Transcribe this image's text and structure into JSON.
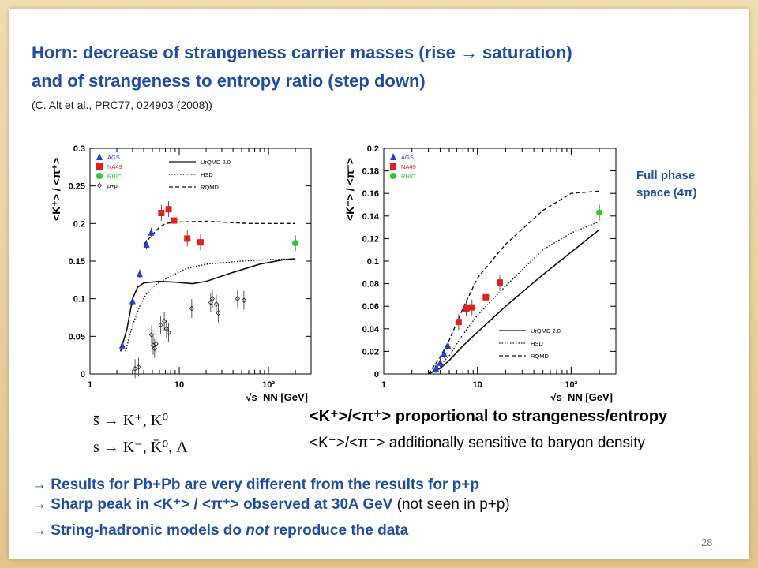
{
  "slide": {
    "title_line1": "Horn: decrease of strangeness carrier masses (rise → saturation)",
    "title_line2": "and of strangeness to entropy ratio (step down)",
    "citation": "(C. Alt et al., PRC77, 024903 (2008))",
    "full_phase_line1": "Full phase",
    "full_phase_line2": "space (4π)",
    "eq1": "s̄ → K⁺, K⁰",
    "eq2": "s → K⁻, K̄⁰, Λ",
    "claim1": "<K⁺>/<π⁺> proportional to strangeness/entropy",
    "claim2": "<K⁻>/<π⁻> additionally sensitive to baryon density",
    "bullet1": "→ Results for Pb+Pb are very different from the results for p+p",
    "bullet2_bold": "→ Sharp peak in <K⁺> / <π⁺> observed at 30A GeV",
    "bullet2_plain": " (not seen in p+p)",
    "bullet3_a": "→ String-hadronic models do ",
    "bullet3_em": "not",
    "bullet3_b": " reproduce the data",
    "page_number": "28"
  },
  "colors": {
    "title_blue": "#1f4ea0",
    "ags": "#1f3fd0",
    "na49": "#e02020",
    "rhic": "#2ec72e"
  },
  "chart_data": [
    {
      "type": "scatter",
      "ylabel": "<K⁺> / <π⁺>",
      "xlabel": "√s_NN [GeV]",
      "x_scale": "log",
      "xlim": [
        1,
        300
      ],
      "ylim": [
        0,
        0.3
      ],
      "y_ticks": [
        "0",
        "0.05",
        "0.1",
        "0.15",
        "0.2",
        "0.25",
        "0.3"
      ],
      "x_tick_labels": [
        "1",
        "10",
        "10²"
      ],
      "legend_markers": [
        {
          "label": "AGS",
          "key": "ags"
        },
        {
          "label": "NA49",
          "key": "na49"
        },
        {
          "label": "RHIC",
          "key": "rhic"
        },
        {
          "label": "p+p",
          "key": "pp"
        }
      ],
      "legend_lines": [
        {
          "label": "UrQMD 2.0",
          "style": "solid"
        },
        {
          "label": "HSD",
          "style": "dotted"
        },
        {
          "label": "RQMD",
          "style": "dashed"
        }
      ],
      "series": [
        {
          "name": "AGS",
          "key": "ags",
          "points": [
            [
              2.3,
              0.038
            ],
            [
              3.0,
              0.097
            ],
            [
              3.6,
              0.133
            ],
            [
              4.3,
              0.172
            ],
            [
              4.85,
              0.188
            ]
          ]
        },
        {
          "name": "NA49",
          "key": "na49",
          "points": [
            [
              6.3,
              0.214
            ],
            [
              7.6,
              0.219
            ],
            [
              8.75,
              0.204
            ],
            [
              12.3,
              0.18
            ],
            [
              17.3,
              0.175
            ]
          ]
        },
        {
          "name": "RHIC",
          "key": "rhic",
          "points": [
            [
              200,
              0.174
            ]
          ]
        },
        {
          "name": "p+p",
          "key": "pp",
          "points": [
            [
              3.2,
              0.007
            ],
            [
              3.5,
              0.009
            ],
            [
              4.9,
              0.052
            ],
            [
              5.1,
              0.038
            ],
            [
              5.3,
              0.034
            ],
            [
              5.5,
              0.04
            ],
            [
              6.2,
              0.065
            ],
            [
              6.8,
              0.07
            ],
            [
              7.2,
              0.06
            ],
            [
              7.6,
              0.055
            ],
            [
              13.8,
              0.087
            ],
            [
              22.5,
              0.095
            ],
            [
              23.5,
              0.1
            ],
            [
              26,
              0.093
            ],
            [
              27.4,
              0.081
            ],
            [
              45,
              0.1
            ],
            [
              53,
              0.098
            ]
          ]
        }
      ],
      "curves": [
        {
          "name": "UrQMD 2.0",
          "style": "solid",
          "points": [
            [
              2.2,
              0.03
            ],
            [
              2.6,
              0.06
            ],
            [
              3.0,
              0.1
            ],
            [
              3.4,
              0.115
            ],
            [
              4.0,
              0.121
            ],
            [
              6.0,
              0.123
            ],
            [
              9,
              0.122
            ],
            [
              14,
              0.12
            ],
            [
              20,
              0.123
            ],
            [
              40,
              0.135
            ],
            [
              80,
              0.146
            ],
            [
              150,
              0.152
            ],
            [
              200,
              0.153
            ]
          ]
        },
        {
          "name": "HSD",
          "style": "dotted",
          "points": [
            [
              2.5,
              0.03
            ],
            [
              3.0,
              0.065
            ],
            [
              3.6,
              0.09
            ],
            [
              4.2,
              0.105
            ],
            [
              5,
              0.115
            ],
            [
              6,
              0.122
            ],
            [
              8,
              0.13
            ],
            [
              12,
              0.14
            ],
            [
              20,
              0.146
            ],
            [
              50,
              0.15
            ],
            [
              100,
              0.152
            ],
            [
              200,
              0.153
            ]
          ]
        },
        {
          "name": "RQMD",
          "style": "dashed",
          "points": [
            [
              4.0,
              0.172
            ],
            [
              5,
              0.185
            ],
            [
              6,
              0.195
            ],
            [
              7,
              0.2
            ],
            [
              10,
              0.202
            ],
            [
              20,
              0.203
            ],
            [
              60,
              0.2
            ],
            [
              200,
              0.2
            ]
          ]
        }
      ]
    },
    {
      "type": "scatter",
      "ylabel": "<K⁻> / <π⁻>",
      "xlabel": "√s_NN [GeV]",
      "x_scale": "log",
      "xlim": [
        1,
        300
      ],
      "ylim": [
        0,
        0.2
      ],
      "y_ticks": [
        "0",
        "0.02",
        "0.04",
        "0.06",
        "0.08",
        "0.1",
        "0.12",
        "0.14",
        "0.16",
        "0.18",
        "0.2"
      ],
      "x_tick_labels": [
        "1",
        "10",
        "10²"
      ],
      "legend_markers": [
        {
          "label": "AGS",
          "key": "ags"
        },
        {
          "label": "NA49",
          "key": "na49"
        },
        {
          "label": "RHIC",
          "key": "rhic"
        }
      ],
      "legend_lines": [
        {
          "label": "UrQMD 2.0",
          "style": "solid"
        },
        {
          "label": "HSD",
          "style": "dotted"
        },
        {
          "label": "RQMD",
          "style": "dashed"
        }
      ],
      "series": [
        {
          "name": "AGS",
          "key": "ags",
          "points": [
            [
              3.6,
              0.005
            ],
            [
              4.0,
              0.01
            ],
            [
              4.4,
              0.018
            ],
            [
              4.85,
              0.025
            ]
          ]
        },
        {
          "name": "NA49",
          "key": "na49",
          "points": [
            [
              6.3,
              0.046
            ],
            [
              7.6,
              0.058
            ],
            [
              8.75,
              0.059
            ],
            [
              12.3,
              0.068
            ],
            [
              17.3,
              0.081
            ]
          ]
        },
        {
          "name": "RHIC",
          "key": "rhic",
          "points": [
            [
              200,
              0.143
            ]
          ]
        }
      ],
      "curves": [
        {
          "name": "UrQMD 2.0",
          "style": "solid",
          "points": [
            [
              3.0,
              0.0
            ],
            [
              4.0,
              0.005
            ],
            [
              5,
              0.012
            ],
            [
              7,
              0.025
            ],
            [
              10,
              0.037
            ],
            [
              20,
              0.06
            ],
            [
              50,
              0.088
            ],
            [
              100,
              0.108
            ],
            [
              200,
              0.128
            ]
          ]
        },
        {
          "name": "HSD",
          "style": "dotted",
          "points": [
            [
              3.0,
              0.0
            ],
            [
              4.0,
              0.008
            ],
            [
              5,
              0.016
            ],
            [
              7,
              0.035
            ],
            [
              10,
              0.052
            ],
            [
              20,
              0.078
            ],
            [
              50,
              0.11
            ],
            [
              100,
              0.125
            ],
            [
              200,
              0.135
            ]
          ]
        },
        {
          "name": "RQMD",
          "style": "dashed",
          "points": [
            [
              3.0,
              0.0
            ],
            [
              4.0,
              0.015
            ],
            [
              5,
              0.03
            ],
            [
              7,
              0.058
            ],
            [
              10,
              0.085
            ],
            [
              20,
              0.115
            ],
            [
              50,
              0.145
            ],
            [
              100,
              0.16
            ],
            [
              200,
              0.162
            ]
          ]
        }
      ]
    }
  ]
}
